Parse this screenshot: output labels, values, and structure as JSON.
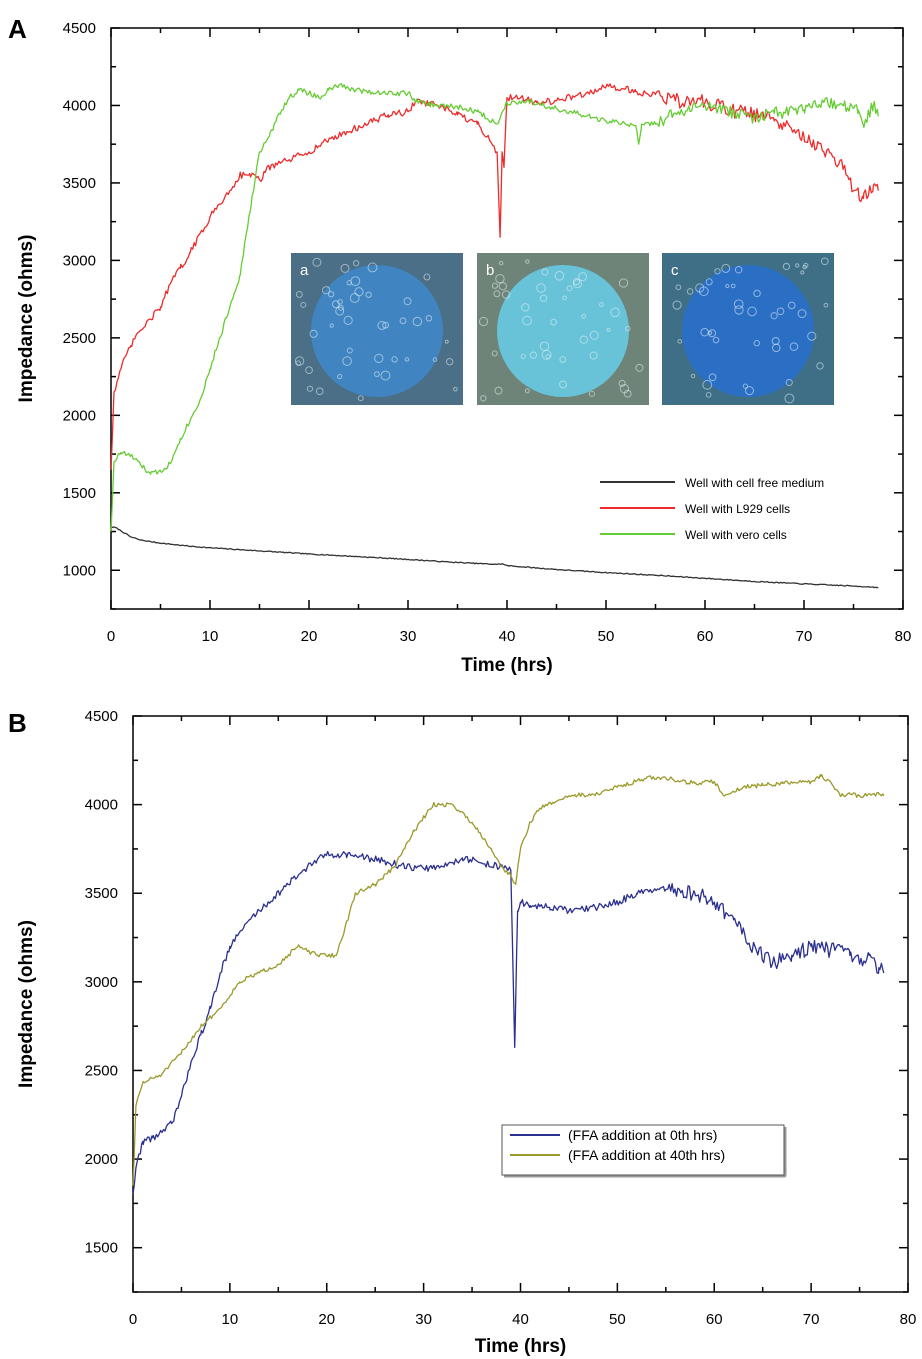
{
  "chart_data": [
    {
      "panel": "A",
      "type": "line",
      "xlabel": "Time (hrs)",
      "ylabel": "Impedance (ohms)",
      "xlim": [
        0,
        80
      ],
      "ylim": [
        750,
        4500
      ],
      "xticks": [
        0,
        10,
        20,
        30,
        40,
        50,
        60,
        70,
        80
      ],
      "yticks": [
        1000,
        1500,
        2000,
        2500,
        3000,
        3500,
        4000,
        4500
      ],
      "grid": false,
      "legend_position": "bottom-right",
      "insets": [
        {
          "label": "a",
          "color": "#3f86c4",
          "bg": "#4a6f86"
        },
        {
          "label": "b",
          "color": "#67c6de",
          "bg": "#6f8478"
        },
        {
          "label": "c",
          "color": "#2a6fc8",
          "bg": "#3f6f86"
        }
      ],
      "series": [
        {
          "name": "Well with cell free medium",
          "color": "#333333",
          "x": [
            0,
            0.5,
            1,
            2,
            3,
            5,
            8,
            10,
            15,
            20,
            25,
            30,
            35,
            39,
            39.5,
            40,
            45,
            50,
            55,
            60,
            65,
            70,
            75,
            77.5
          ],
          "y": [
            1280,
            1275,
            1255,
            1215,
            1195,
            1175,
            1155,
            1145,
            1125,
            1105,
            1088,
            1070,
            1050,
            1038,
            1042,
            1030,
            1005,
            985,
            968,
            948,
            928,
            912,
            898,
            890
          ]
        },
        {
          "name": "Well with L929 cells",
          "color": "#ee2a2a",
          "x": [
            0,
            0.3,
            1,
            2,
            3,
            4,
            5,
            6,
            7,
            8,
            10,
            12,
            13,
            14,
            15,
            16,
            18,
            20,
            22,
            25,
            28,
            30,
            31,
            32,
            33,
            35,
            37,
            38,
            39,
            39.3,
            39.5,
            39.7,
            40,
            41,
            43,
            45,
            48,
            50,
            52,
            53,
            55,
            57,
            60,
            62,
            65,
            67,
            70,
            72,
            74,
            75,
            76,
            77,
            77.5
          ],
          "y": [
            1650,
            2150,
            2300,
            2450,
            2550,
            2620,
            2700,
            2850,
            2950,
            3050,
            3280,
            3450,
            3550,
            3560,
            3520,
            3600,
            3650,
            3700,
            3780,
            3860,
            3940,
            3960,
            4040,
            4010,
            4000,
            3940,
            3880,
            3800,
            3700,
            3150,
            3700,
            3600,
            4050,
            4060,
            4020,
            4030,
            4080,
            4120,
            4110,
            4090,
            4070,
            4030,
            4020,
            3980,
            3940,
            3900,
            3800,
            3700,
            3600,
            3450,
            3400,
            3480,
            3450
          ]
        },
        {
          "name": "Well with vero cells",
          "color": "#66cc33",
          "x": [
            0,
            0.3,
            1,
            2,
            3,
            4,
            5,
            6,
            7,
            8,
            9,
            10,
            11,
            12,
            13,
            14,
            15,
            16,
            17,
            18,
            19,
            20,
            21,
            22,
            23,
            24,
            26,
            28,
            30,
            31,
            33,
            35,
            37,
            39,
            40,
            42,
            45,
            48,
            50,
            53,
            53.3,
            53.6,
            55,
            57,
            60,
            63,
            65,
            67,
            70,
            72,
            74,
            75.5,
            76,
            77,
            77.5
          ],
          "y": [
            1250,
            1700,
            1760,
            1740,
            1680,
            1620,
            1640,
            1690,
            1850,
            1970,
            2100,
            2300,
            2500,
            2700,
            2900,
            3300,
            3700,
            3800,
            3950,
            4050,
            4100,
            4080,
            4050,
            4100,
            4130,
            4110,
            4090,
            4080,
            4080,
            4020,
            4000,
            3990,
            3960,
            3880,
            4020,
            4030,
            3980,
            3930,
            3900,
            3870,
            3750,
            3880,
            3880,
            3950,
            4000,
            3950,
            3920,
            3950,
            3970,
            4020,
            4000,
            3970,
            3870,
            4000,
            3930
          ]
        }
      ]
    },
    {
      "panel": "B",
      "type": "line",
      "xlabel": "Time (hrs)",
      "ylabel": "Impedance (ohms)",
      "xlim": [
        0,
        80
      ],
      "ylim": [
        1250,
        4500
      ],
      "xticks": [
        0,
        10,
        20,
        30,
        40,
        50,
        60,
        70,
        80
      ],
      "yticks": [
        1500,
        2000,
        2500,
        3000,
        3500,
        4000,
        4500
      ],
      "grid": false,
      "legend_position": "center-right",
      "series": [
        {
          "name": "(FFA addition at 0th hrs)",
          "color": "#2b2f8e",
          "x": [
            0,
            0.3,
            1,
            2,
            3,
            4,
            5,
            6,
            7,
            8,
            9,
            10,
            12,
            14,
            16,
            18,
            20,
            22,
            24,
            26,
            28,
            30,
            32,
            34,
            36,
            38,
            39,
            39.4,
            39.7,
            40,
            41,
            43,
            45,
            48,
            50,
            52,
            55,
            58,
            60,
            62,
            64,
            66,
            68,
            70,
            72,
            74,
            75,
            76,
            77,
            77.5
          ],
          "y": [
            1800,
            1950,
            2100,
            2120,
            2150,
            2200,
            2350,
            2550,
            2700,
            2850,
            3050,
            3200,
            3350,
            3450,
            3550,
            3650,
            3720,
            3720,
            3700,
            3680,
            3650,
            3640,
            3650,
            3700,
            3670,
            3650,
            3630,
            2630,
            3400,
            3450,
            3430,
            3420,
            3400,
            3420,
            3450,
            3500,
            3520,
            3500,
            3450,
            3350,
            3200,
            3100,
            3150,
            3200,
            3180,
            3150,
            3100,
            3150,
            3080,
            3050
          ]
        },
        {
          "name": "(FFA addition at 40th hrs)",
          "color": "#9a9a2a",
          "x": [
            0,
            0.3,
            1,
            3,
            5,
            7,
            9,
            11,
            13,
            15,
            17,
            19,
            21,
            23,
            25,
            27,
            29,
            31,
            33,
            35,
            37,
            38,
            39,
            39.5,
            40,
            41,
            42,
            45,
            48,
            50,
            53,
            55,
            58,
            60,
            61,
            63,
            65,
            67,
            70,
            71,
            72,
            73,
            74,
            75,
            77,
            77.5
          ],
          "y": [
            1850,
            2300,
            2430,
            2480,
            2600,
            2750,
            2850,
            3000,
            3050,
            3100,
            3200,
            3150,
            3150,
            3500,
            3550,
            3650,
            3850,
            4000,
            4000,
            3900,
            3750,
            3650,
            3600,
            3550,
            3750,
            3900,
            3980,
            4050,
            4060,
            4100,
            4150,
            4150,
            4120,
            4130,
            4050,
            4100,
            4110,
            4120,
            4130,
            4160,
            4130,
            4050,
            4060,
            4050,
            4060,
            4050
          ]
        }
      ]
    }
  ]
}
